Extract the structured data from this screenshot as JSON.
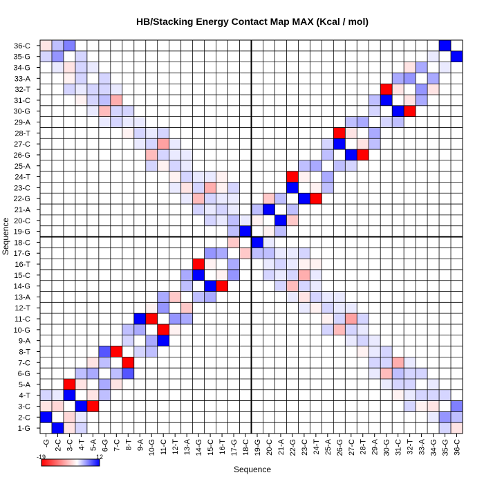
{
  "chart_data": {
    "type": "heatmap",
    "title": "HB/Stacking Energy Contact Map MAX (Kcal / mol)",
    "xlabel": "Sequence",
    "ylabel": "Sequence",
    "labels": [
      "1-G",
      "2-C",
      "3-C",
      "4-T",
      "5-A",
      "6-G",
      "7-C",
      "8-T",
      "9-A",
      "10-G",
      "11-C",
      "12-T",
      "13-A",
      "14-G",
      "15-C",
      "16-T",
      "17-G",
      "18-C",
      "19-G",
      "20-C",
      "21-A",
      "22-G",
      "23-C",
      "24-T",
      "25-A",
      "26-G",
      "27-C",
      "28-T",
      "29-A",
      "30-G",
      "31-C",
      "32-T",
      "33-A",
      "34-G",
      "35-G",
      "36-C"
    ],
    "x_tick_labels": [
      "-G",
      "2-C",
      "3-C",
      "4-T",
      "5-A",
      "6-G",
      "7-C",
      "8-T",
      "9-A",
      "10-G",
      "11-C",
      "12-T",
      "13-A",
      "14-G",
      "15-C",
      "16-T",
      "17-G",
      "18-C",
      "19-G",
      "20-C",
      "21-A",
      "22-G",
      "23-C",
      "24-T",
      "25-A",
      "26-G",
      "27-C",
      "28-T",
      "29-A",
      "30-G",
      "31-C",
      "32-T",
      "33-A",
      "34-G",
      "35-G",
      "36-C"
    ],
    "colorbar": {
      "min": -19,
      "max": 12,
      "min_label": "-19",
      "max_label": "12",
      "colors": [
        "#ff0000",
        "#ffffff",
        "#0000ff"
      ]
    },
    "grid": true,
    "divider_after_index": 18,
    "cells": [
      [
        1,
        2,
        12
      ],
      [
        1,
        3,
        -2
      ],
      [
        2,
        3,
        -3
      ],
      [
        1,
        4,
        2
      ],
      [
        2,
        4,
        1
      ],
      [
        3,
        4,
        12
      ],
      [
        3,
        5,
        -19
      ],
      [
        4,
        5,
        -2
      ],
      [
        4,
        6,
        3
      ],
      [
        5,
        6,
        4
      ],
      [
        5,
        7,
        -2
      ],
      [
        6,
        7,
        3
      ],
      [
        6,
        8,
        8
      ],
      [
        7,
        8,
        -19
      ],
      [
        8,
        9,
        2
      ],
      [
        8,
        10,
        3
      ],
      [
        9,
        10,
        4
      ],
      [
        9,
        11,
        12
      ],
      [
        10,
        11,
        -19
      ],
      [
        10,
        12,
        -1
      ],
      [
        11,
        12,
        5
      ],
      [
        11,
        13,
        4
      ],
      [
        12,
        13,
        -4
      ],
      [
        13,
        14,
        3
      ],
      [
        13,
        15,
        4
      ],
      [
        14,
        15,
        12
      ],
      [
        14,
        16,
        -19
      ],
      [
        15,
        16,
        -1
      ],
      [
        15,
        17,
        5
      ],
      [
        16,
        17,
        4
      ],
      [
        17,
        18,
        -4
      ],
      [
        17,
        19,
        3
      ],
      [
        18,
        19,
        12
      ],
      [
        18,
        20,
        -19
      ],
      [
        19,
        20,
        -1
      ],
      [
        19,
        21,
        3
      ],
      [
        20,
        21,
        12
      ],
      [
        20,
        22,
        -4
      ],
      [
        21,
        22,
        3
      ],
      [
        22,
        23,
        12
      ],
      [
        22,
        24,
        -19
      ],
      [
        23,
        24,
        -1
      ],
      [
        23,
        25,
        3
      ],
      [
        24,
        25,
        4
      ],
      [
        25,
        26,
        3
      ],
      [
        25,
        27,
        2
      ],
      [
        26,
        27,
        12
      ],
      [
        26,
        28,
        -19
      ],
      [
        27,
        28,
        -2
      ],
      [
        27,
        29,
        3
      ],
      [
        28,
        29,
        4
      ],
      [
        29,
        30,
        2
      ],
      [
        29,
        31,
        3
      ],
      [
        30,
        31,
        12
      ],
      [
        30,
        32,
        -19
      ],
      [
        31,
        32,
        -2
      ],
      [
        31,
        33,
        4
      ],
      [
        32,
        33,
        5
      ],
      [
        32,
        34,
        -2
      ],
      [
        33,
        34,
        4
      ],
      [
        34,
        35,
        1
      ],
      [
        35,
        36,
        12
      ],
      [
        6,
        30,
        -5
      ],
      [
        7,
        31,
        -6
      ],
      [
        10,
        26,
        -5
      ],
      [
        11,
        27,
        -7
      ],
      [
        14,
        22,
        -5
      ],
      [
        15,
        23,
        -6
      ],
      [
        2,
        35,
        5
      ],
      [
        3,
        36,
        6
      ],
      [
        1,
        36,
        -2
      ],
      [
        1,
        35,
        2
      ],
      [
        2,
        36,
        3
      ],
      [
        4,
        33,
        2
      ],
      [
        4,
        32,
        1
      ],
      [
        5,
        32,
        2
      ],
      [
        5,
        31,
        2
      ],
      [
        6,
        31,
        3
      ],
      [
        7,
        30,
        2
      ],
      [
        8,
        30,
        2
      ],
      [
        8,
        29,
        1
      ],
      [
        9,
        28,
        2
      ],
      [
        9,
        29,
        1
      ],
      [
        10,
        27,
        2
      ],
      [
        11,
        26,
        2
      ],
      [
        12,
        25,
        2
      ],
      [
        12,
        26,
        1
      ],
      [
        13,
        24,
        2
      ],
      [
        13,
        25,
        1
      ],
      [
        14,
        23,
        2
      ],
      [
        15,
        22,
        2
      ],
      [
        16,
        21,
        2
      ],
      [
        16,
        22,
        1
      ],
      [
        17,
        20,
        3
      ],
      [
        17,
        21,
        1
      ],
      [
        18,
        20,
        1
      ],
      [
        16,
        20,
        1
      ],
      [
        3,
        33,
        -1
      ],
      [
        3,
        32,
        2
      ],
      [
        4,
        31,
        -1
      ],
      [
        5,
        30,
        1
      ],
      [
        6,
        29,
        1
      ],
      [
        7,
        29,
        2
      ],
      [
        8,
        28,
        -1
      ],
      [
        9,
        27,
        1
      ],
      [
        10,
        25,
        2
      ],
      [
        11,
        25,
        -1
      ],
      [
        12,
        24,
        -1
      ],
      [
        13,
        23,
        -2
      ],
      [
        14,
        21,
        2
      ],
      [
        15,
        21,
        1
      ],
      [
        15,
        20,
        2
      ],
      [
        16,
        23,
        -1
      ],
      [
        17,
        22,
        1
      ],
      [
        6,
        32,
        2
      ],
      [
        7,
        32,
        1
      ],
      [
        10,
        28,
        1
      ],
      [
        11,
        28,
        2
      ],
      [
        14,
        24,
        1
      ],
      [
        15,
        24,
        1
      ],
      [
        4,
        35,
        2
      ],
      [
        5,
        34,
        1
      ],
      [
        3,
        34,
        -2
      ],
      [
        4,
        34,
        2
      ],
      [
        2,
        34,
        1
      ],
      [
        6,
        33,
        2
      ],
      [
        12,
        27,
        1
      ],
      [
        13,
        26,
        1
      ],
      [
        16,
        24,
        -1
      ],
      [
        17,
        23,
        2
      ],
      [
        13,
        22,
        1
      ],
      [
        12,
        23,
        1
      ]
    ]
  }
}
